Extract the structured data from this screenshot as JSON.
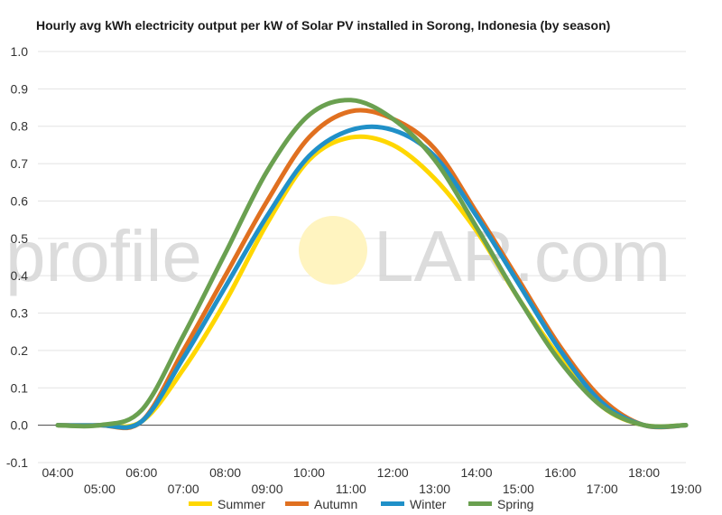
{
  "chart_data": {
    "type": "line",
    "title": "Hourly avg kWh electricity output per kW of Solar PV installed in Sorong, Indonesia (by season)",
    "xlabel": "",
    "ylabel": "",
    "x": [
      "04:00",
      "05:00",
      "06:00",
      "07:00",
      "08:00",
      "09:00",
      "10:00",
      "11:00",
      "12:00",
      "13:00",
      "14:00",
      "15:00",
      "16:00",
      "17:00",
      "18:00",
      "19:00"
    ],
    "x_tick_labels": [
      "04:00",
      "05:00",
      "06:00",
      "07:00",
      "08:00",
      "09:00",
      "10:00",
      "11:00",
      "12:00",
      "13:00",
      "14:00",
      "15:00",
      "16:00",
      "17:00",
      "18:00",
      "19:00"
    ],
    "y_tick_labels": [
      "1.0",
      "0.9",
      "0.8",
      "0.7",
      "0.6",
      "0.5",
      "0.4",
      "0.3",
      "0.2",
      "0.1",
      "0.0",
      "-0.1"
    ],
    "ylim": [
      -0.1,
      1.0
    ],
    "grid": true,
    "legend_position": "bottom",
    "series": [
      {
        "name": "Summer",
        "color": "#ffd700",
        "values": [
          0.0,
          0.0,
          0.01,
          0.15,
          0.33,
          0.54,
          0.71,
          0.77,
          0.75,
          0.66,
          0.52,
          0.34,
          0.18,
          0.05,
          0.0,
          0.0
        ]
      },
      {
        "name": "Autumn",
        "color": "#e07020",
        "values": [
          0.0,
          0.0,
          0.01,
          0.2,
          0.4,
          0.6,
          0.77,
          0.84,
          0.82,
          0.74,
          0.57,
          0.39,
          0.21,
          0.07,
          0.0,
          0.0
        ]
      },
      {
        "name": "Winter",
        "color": "#2090c8",
        "values": [
          0.0,
          0.0,
          0.01,
          0.18,
          0.37,
          0.56,
          0.72,
          0.79,
          0.79,
          0.72,
          0.56,
          0.38,
          0.2,
          0.06,
          0.0,
          0.0
        ]
      },
      {
        "name": "Spring",
        "color": "#6aa050",
        "values": [
          0.0,
          0.0,
          0.04,
          0.24,
          0.46,
          0.68,
          0.83,
          0.87,
          0.82,
          0.71,
          0.53,
          0.34,
          0.17,
          0.05,
          0.0,
          0.0
        ]
      }
    ]
  },
  "watermark": {
    "left_text": "profile",
    "right_text": "LAR.com",
    "sun_color": "#fff4c0"
  }
}
